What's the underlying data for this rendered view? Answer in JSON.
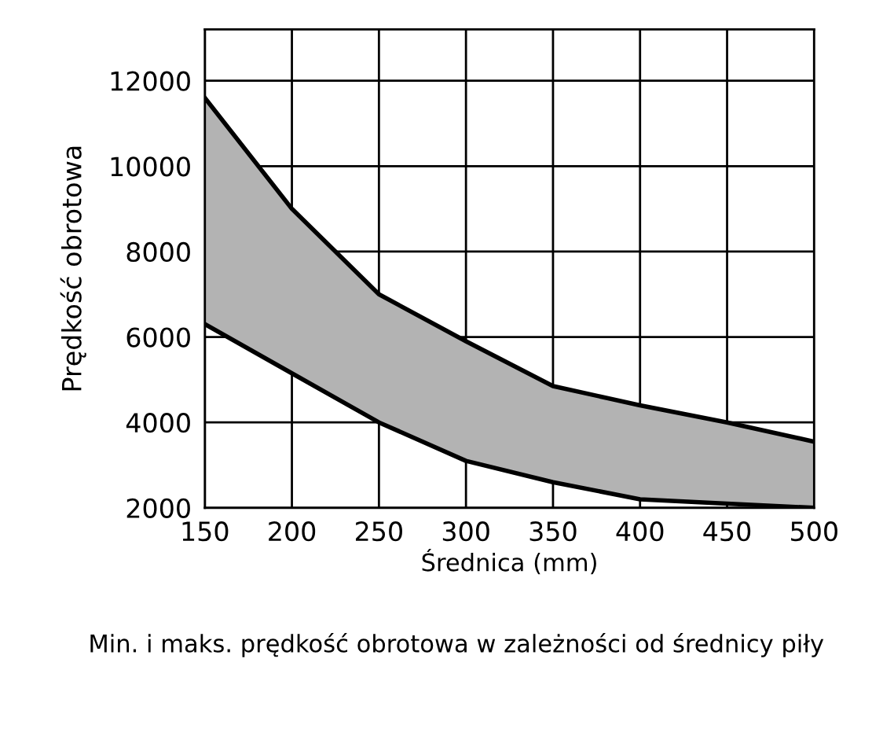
{
  "chart_data": {
    "type": "area",
    "xlabel": "Średnica (mm)",
    "ylabel": "Prędkość obrotowa",
    "x": [
      150,
      200,
      250,
      300,
      350,
      400,
      450,
      500
    ],
    "series": [
      {
        "color": "#b3b3b3",
        "values": [
          11600,
          9000,
          7000,
          5900,
          4850,
          4400,
          4000,
          3550
        ]
      },
      {
        "type": "line",
        "color": "#000000",
        "values": [
          6300,
          5150,
          4000,
          3100,
          2600,
          2200,
          2100,
          2000
        ]
      }
    ],
    "xlim": [
      150,
      500
    ],
    "ylim": [
      2000,
      13200
    ],
    "xticks": [
      150,
      200,
      250,
      300,
      350,
      400,
      450,
      500
    ],
    "yticks": [
      2000,
      4000,
      6000,
      8000,
      10000,
      12000
    ],
    "grid": true,
    "annotations": [
      "Min. i maks. prędkość obrotowa w zależności od średnicy piły"
    ]
  }
}
